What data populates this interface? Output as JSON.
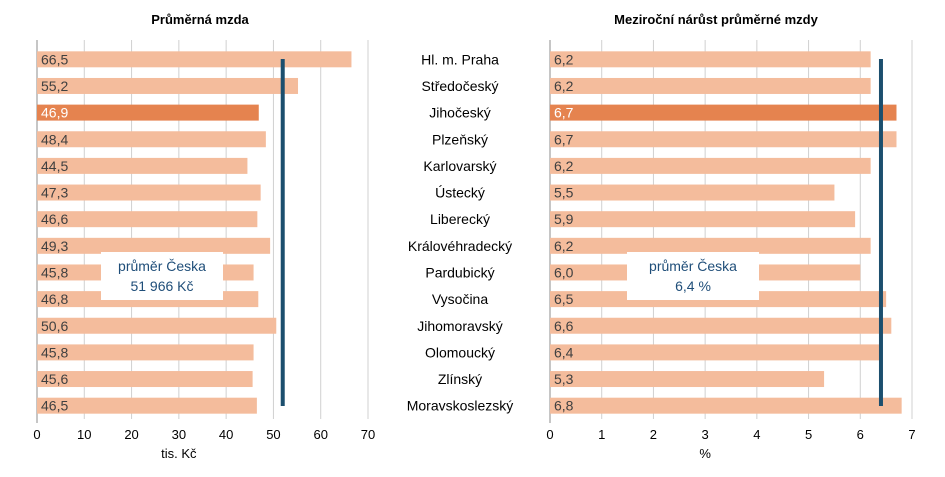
{
  "colors": {
    "bar": "#f4bc9c",
    "bar_highlight": "#e5834f",
    "label": "#404040",
    "label_highlight": "#ffffff",
    "average_line": "#1c4f6e",
    "annotation_text": "#1f4e79",
    "grid": "#d0d0d0"
  },
  "chart_data": [
    {
      "type": "bar",
      "orientation": "horizontal",
      "title": "Průměrná mzda",
      "xlabel": "tis. Kč",
      "xlim": [
        0,
        70
      ],
      "x_ticks": [
        "0",
        "10",
        "20",
        "30",
        "40",
        "50",
        "60",
        "70"
      ],
      "grid": true,
      "categories": [
        "Hl. m. Praha",
        "Středočeský",
        "Jihočeský",
        "Plzeňský",
        "Karlovarský",
        "Ústecký",
        "Liberecký",
        "Královéhradecký",
        "Pardubický",
        "Vysočina",
        "Jihomoravský",
        "Olomoucký",
        "Zlínský",
        "Moravskoslezský"
      ],
      "values": [
        66.5,
        55.2,
        46.9,
        48.4,
        44.5,
        47.3,
        46.6,
        49.3,
        45.8,
        46.8,
        50.6,
        45.8,
        45.6,
        46.5
      ],
      "value_labels": [
        "66,5",
        "55,2",
        "46,9",
        "48,4",
        "44,5",
        "47,3",
        "46,6",
        "49,3",
        "45,8",
        "46,8",
        "50,6",
        "45,8",
        "45,6",
        "46,5"
      ],
      "highlight_index": 2,
      "average": 51.966,
      "annotation": [
        "průměr Česka",
        "51 966 Kč"
      ]
    },
    {
      "type": "bar",
      "orientation": "horizontal",
      "title": "Meziroční nárůst průměrné mzdy",
      "xlabel": "%",
      "xlim": [
        0,
        7
      ],
      "x_ticks": [
        "0",
        "1",
        "2",
        "3",
        "4",
        "5",
        "6",
        "7"
      ],
      "grid": true,
      "categories": [
        "Hl. m. Praha",
        "Středočeský",
        "Jihočeský",
        "Plzeňský",
        "Karlovarský",
        "Ústecký",
        "Liberecký",
        "Královéhradecký",
        "Pardubický",
        "Vysočina",
        "Jihomoravský",
        "Olomoucký",
        "Zlínský",
        "Moravskoslezský"
      ],
      "values": [
        6.2,
        6.2,
        6.7,
        6.7,
        6.2,
        5.5,
        5.9,
        6.2,
        6.0,
        6.5,
        6.6,
        6.4,
        5.3,
        6.8
      ],
      "value_labels": [
        "6,2",
        "6,2",
        "6,7",
        "6,7",
        "6,2",
        "5,5",
        "5,9",
        "6,2",
        "6,0",
        "6,5",
        "6,6",
        "6,4",
        "5,3",
        "6,8"
      ],
      "highlight_index": 2,
      "average": 6.4,
      "annotation": [
        "průměr Česka",
        "6,4 %"
      ]
    }
  ]
}
